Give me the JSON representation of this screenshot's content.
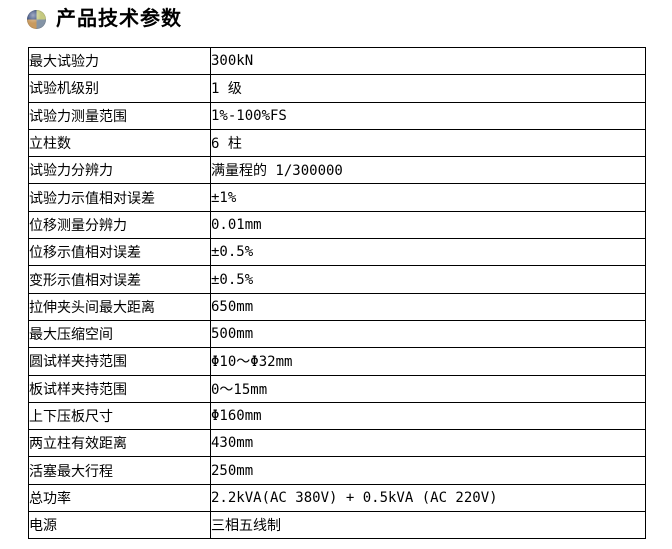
{
  "header": {
    "title": "产品技术参数",
    "icon": "sphere-quadrant-bullet-icon"
  },
  "table": {
    "rows": [
      {
        "label": "最大试验力",
        "value": "300kN"
      },
      {
        "label": "试验机级别",
        "value": "1 级"
      },
      {
        "label": "试验力测量范围",
        "value": "1%-100%FS"
      },
      {
        "label": "立柱数",
        "value": "6 柱"
      },
      {
        "label": "试验力分辨力",
        "value": "满量程的 1/300000"
      },
      {
        "label": "试验力示值相对误差",
        "value": "±1%"
      },
      {
        "label": "位移测量分辨力",
        "value": "0.01mm"
      },
      {
        "label": "位移示值相对误差",
        "value": "±0.5%"
      },
      {
        "label": "变形示值相对误差",
        "value": "±0.5%"
      },
      {
        "label": "拉伸夹头间最大距离",
        "value": "650mm"
      },
      {
        "label": "最大压缩空间",
        "value": "500mm"
      },
      {
        "label": "圆试样夹持范围",
        "value": "Φ10～Φ32mm"
      },
      {
        "label": "板试样夹持范围",
        "value": "0～15mm"
      },
      {
        "label": "上下压板尺寸",
        "value": "Φ160mm"
      },
      {
        "label": "两立柱有效距离",
        "value": "430mm"
      },
      {
        "label": "活塞最大行程",
        "value": "250mm"
      },
      {
        "label": "总功率",
        "value": "2.2kVA(AC 380V) + 0.5kVA (AC 220V)"
      },
      {
        "label": "电源",
        "value": "三相五线制"
      }
    ]
  },
  "colors": {
    "background": "#ffffff",
    "border": "#000000",
    "text": "#000000",
    "icon_top_left": "#2f4579",
    "icon_top_right": "#c6ca81",
    "icon_bottom_left": "#c89a5f",
    "icon_bottom_right": "#8494a6"
  }
}
